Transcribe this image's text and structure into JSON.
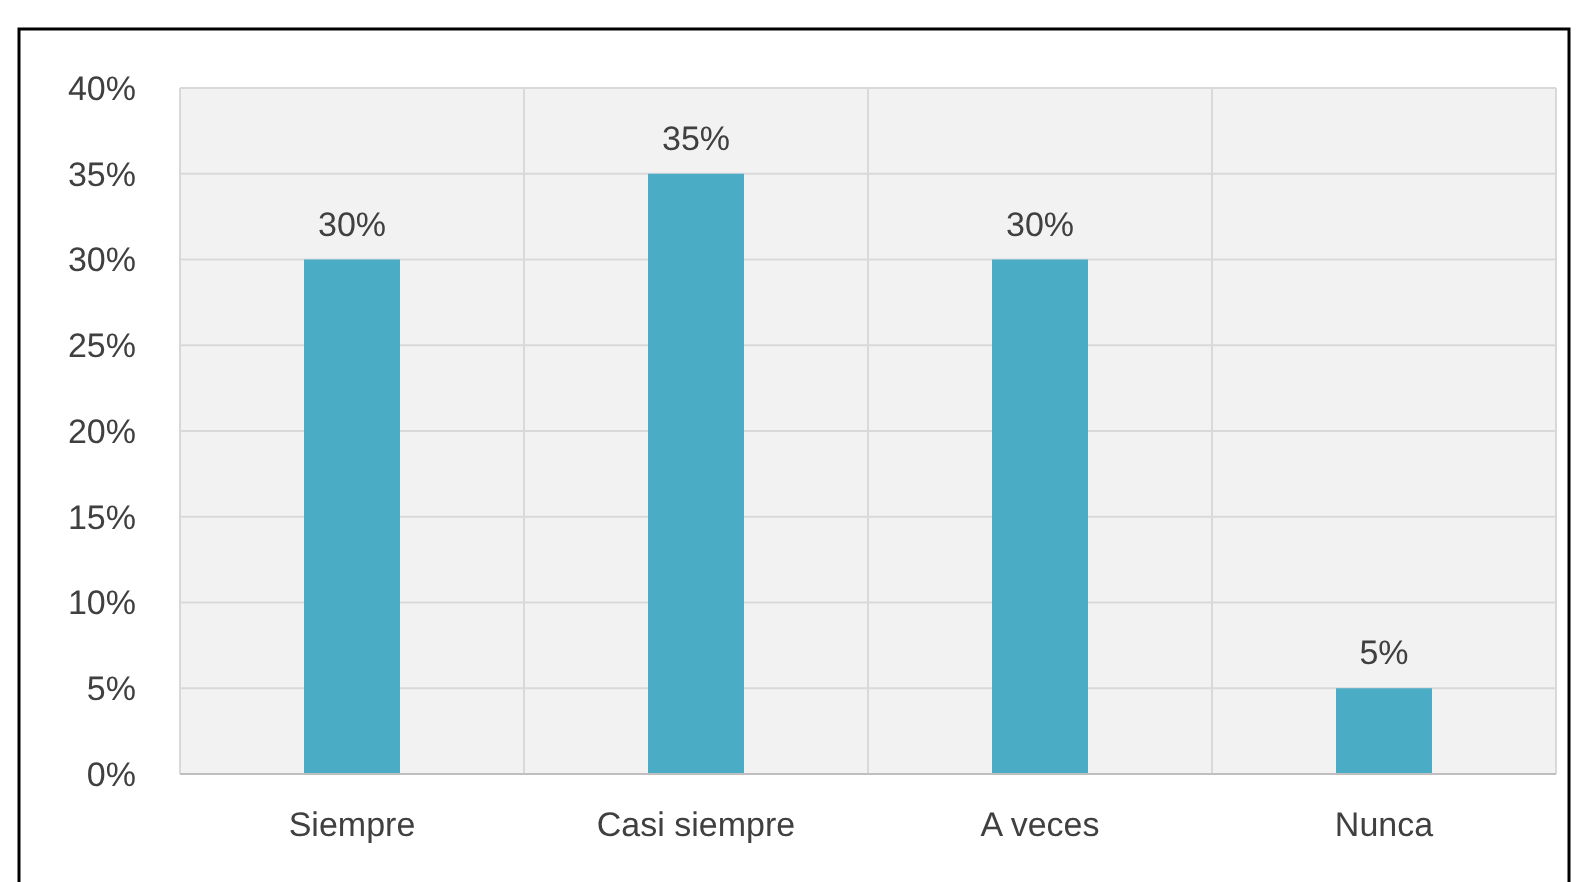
{
  "chart_data": {
    "type": "bar",
    "categories": [
      "Siempre",
      "Casi siempre",
      "A veces",
      "Nunca"
    ],
    "values": [
      30,
      35,
      30,
      5
    ],
    "color": "#4bacc6",
    "value_labels": [
      "30%",
      "35%",
      "30%",
      "5%"
    ],
    "ylim": [
      0,
      40
    ],
    "yticks": [
      {
        "value": 0,
        "label": "0%"
      },
      {
        "value": 5,
        "label": "5%"
      },
      {
        "value": 10,
        "label": "10%"
      },
      {
        "value": 15,
        "label": "15%"
      },
      {
        "value": 20,
        "label": "20%"
      },
      {
        "value": 25,
        "label": "25%"
      },
      {
        "value": 30,
        "label": "30%"
      },
      {
        "value": 35,
        "label": "35%"
      },
      {
        "value": 40,
        "label": "40%"
      }
    ],
    "grid": true
  }
}
